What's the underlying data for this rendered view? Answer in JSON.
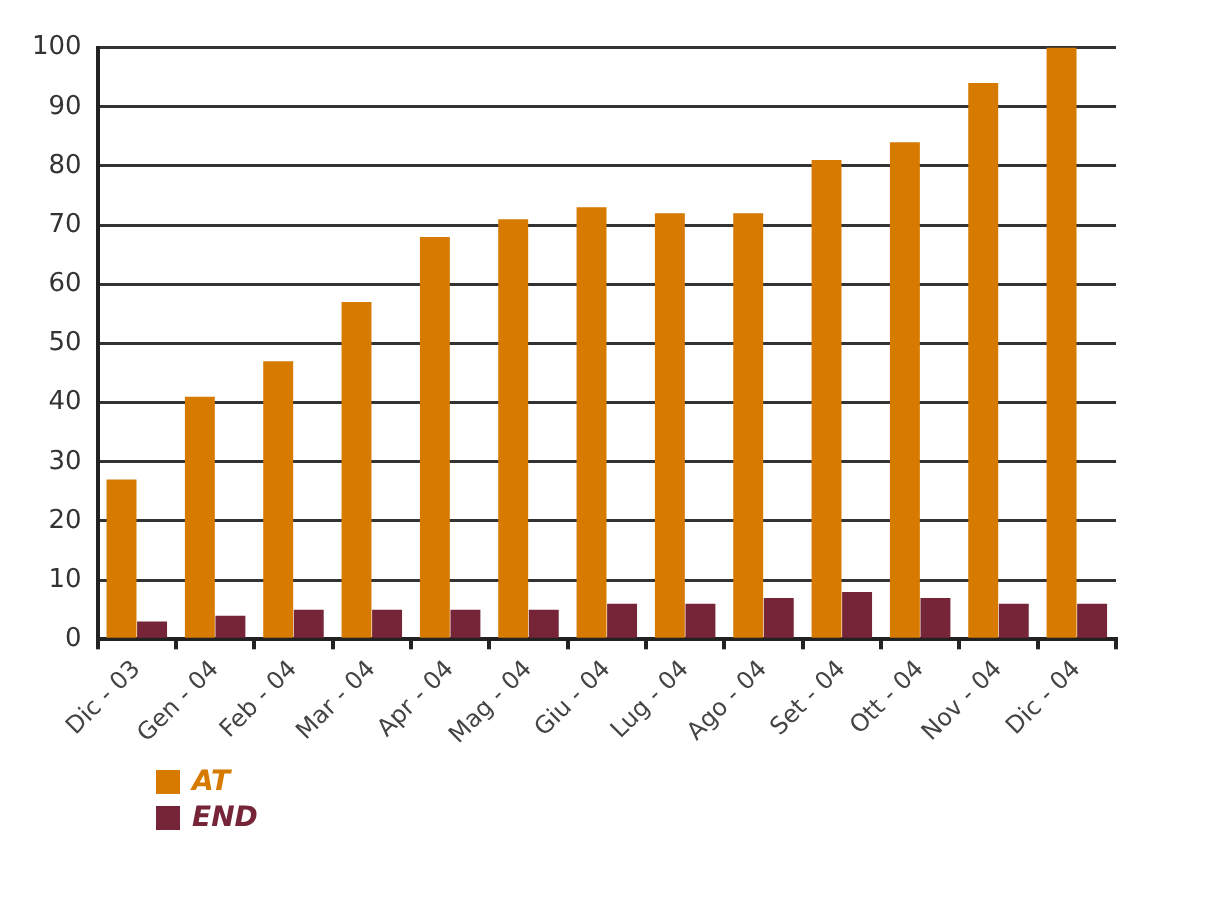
{
  "chart_data": {
    "type": "bar",
    "categories": [
      "Dic - 03",
      "Gen - 04",
      "Feb - 04",
      "Mar - 04",
      "Apr - 04",
      "Mag - 04",
      "Giu - 04",
      "Lug - 04",
      "Ago - 04",
      "Set - 04",
      "Ott - 04",
      "Nov - 04",
      "Dic - 04"
    ],
    "series": [
      {
        "name": "AT",
        "color": "#d67a00",
        "values": [
          27,
          41,
          47,
          57,
          68,
          71,
          73,
          72,
          72,
          81,
          84,
          94,
          100
        ]
      },
      {
        "name": "END",
        "color": "#762437",
        "values": [
          3,
          4,
          5,
          5,
          5,
          5,
          6,
          6,
          7,
          8,
          7,
          6,
          6
        ]
      }
    ],
    "ylim": [
      0,
      100
    ],
    "yticks": [
      0,
      10,
      20,
      30,
      40,
      50,
      60,
      70,
      80,
      90,
      100
    ],
    "grid": "y",
    "legend": "bottom left"
  }
}
